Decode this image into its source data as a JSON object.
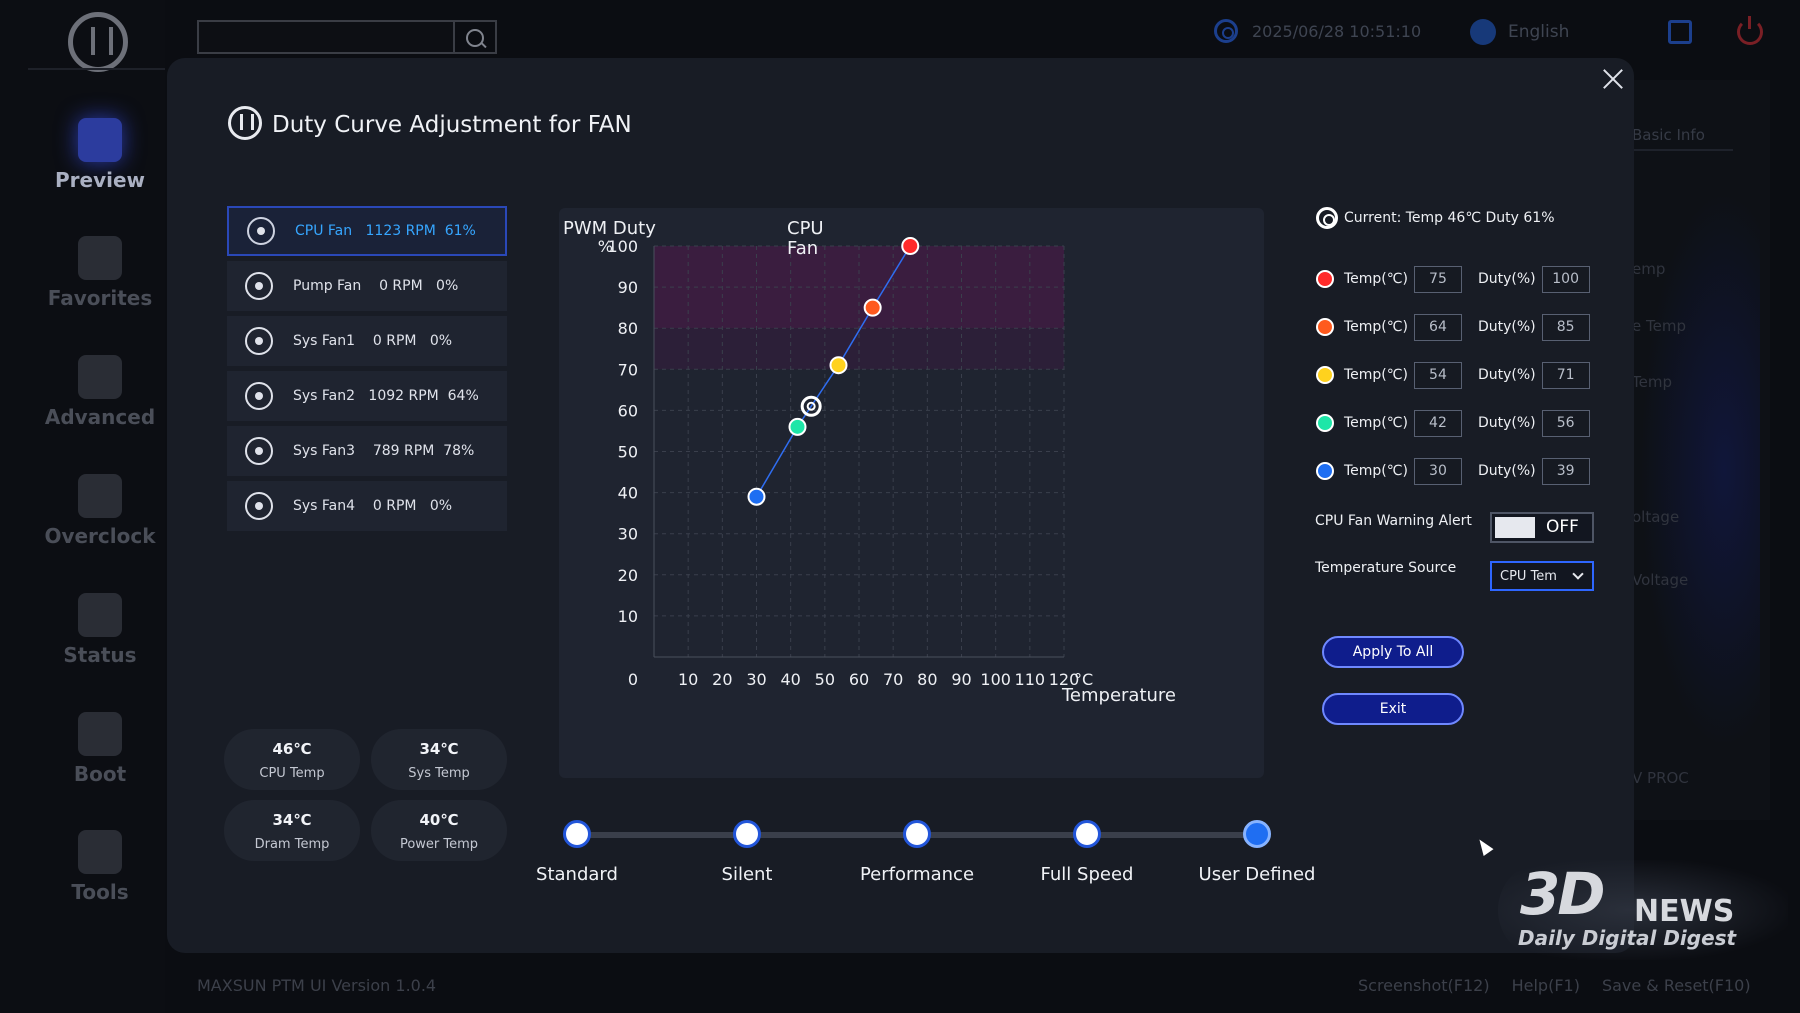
{
  "header": {
    "datetime": "2025/06/28 10:51:10",
    "language": "English"
  },
  "sidebar": {
    "items": [
      {
        "label": "Preview",
        "icon": "grid-icon",
        "active": true
      },
      {
        "label": "Favorites",
        "icon": "star-icon"
      },
      {
        "label": "Advanced",
        "icon": "wrench-icon"
      },
      {
        "label": "Overclock",
        "icon": "rocket-icon"
      },
      {
        "label": "Status",
        "icon": "eye-icon"
      },
      {
        "label": "Boot",
        "icon": "ssd-icon"
      },
      {
        "label": "Tools",
        "icon": "hammer-icon"
      }
    ]
  },
  "background_panel": {
    "tab": "Basic Info",
    "labels": [
      "emp",
      "e Temp",
      "Temp",
      "oltage",
      "Voltage",
      "V PROC"
    ]
  },
  "footer": {
    "version": "MAXSUN PTM UI Version 1.0.4",
    "screenshot": "Screenshot(F12)",
    "help": "Help(F1)",
    "save_reset": "Save & Reset(F10)"
  },
  "modal": {
    "title": "Duty Curve Adjustment for FAN",
    "fans": [
      {
        "name": "CPU Fan",
        "rpm": "1123 RPM",
        "duty": "61%",
        "active": true
      },
      {
        "name": "Pump Fan",
        "rpm": "0 RPM",
        "duty": "0%"
      },
      {
        "name": "Sys Fan1",
        "rpm": "0 RPM",
        "duty": "0%"
      },
      {
        "name": "Sys Fan2",
        "rpm": "1092 RPM",
        "duty": "64%"
      },
      {
        "name": "Sys Fan3",
        "rpm": "789 RPM",
        "duty": "78%"
      },
      {
        "name": "Sys Fan4",
        "rpm": "0 RPM",
        "duty": "0%"
      }
    ],
    "temps": [
      {
        "value": "46℃",
        "label": "CPU Temp"
      },
      {
        "value": "34℃",
        "label": "Sys Temp"
      },
      {
        "value": "34℃",
        "label": "Dram Temp"
      },
      {
        "value": "40℃",
        "label": "Power Temp"
      }
    ],
    "current": "Current: Temp 46℃  Duty 61%",
    "temp_label": "Temp(℃)",
    "duty_label": "Duty(%)",
    "points": [
      {
        "temp": "75",
        "duty": "100",
        "color": "#ff2a2a"
      },
      {
        "temp": "64",
        "duty": "85",
        "color": "#ff5a1e"
      },
      {
        "temp": "54",
        "duty": "71",
        "color": "#ffd21e"
      },
      {
        "temp": "42",
        "duty": "56",
        "color": "#1ee6a8"
      },
      {
        "temp": "30",
        "duty": "39",
        "color": "#1e6ef2"
      }
    ],
    "warning_label": "CPU Fan Warning Alert",
    "warning_state": "OFF",
    "source_label": "Temperature Source",
    "source_value": "CPU Tem",
    "apply_label": "Apply To All",
    "exit_label": "Exit",
    "presets": [
      {
        "label": "Standard"
      },
      {
        "label": "Silent"
      },
      {
        "label": "Performance"
      },
      {
        "label": "Full Speed"
      },
      {
        "label": "User Defined",
        "active": true
      }
    ]
  },
  "watermark": {
    "brand": "3D",
    "news": "NEWS",
    "sub": "Daily Digital Digest"
  },
  "chart_data": {
    "type": "line",
    "title": "CPU Fan",
    "ylabel": "PWM Duty",
    "ylabel_unit": "%",
    "xlabel": "Temperature",
    "xlabel_unit": "°C",
    "xlim": [
      0,
      120
    ],
    "ylim": [
      0,
      100
    ],
    "x_ticks": [
      10,
      20,
      30,
      40,
      50,
      60,
      70,
      80,
      90,
      100,
      110,
      120
    ],
    "y_ticks": [
      0,
      10,
      20,
      30,
      40,
      50,
      60,
      70,
      80,
      90,
      100
    ],
    "grid": true,
    "danger_band": [
      80,
      100
    ],
    "warn_band": [
      70,
      80
    ],
    "series": [
      {
        "x": [
          30,
          42,
          54,
          64,
          75
        ],
        "y": [
          39,
          56,
          71,
          85,
          100
        ]
      }
    ],
    "current_point": {
      "x": 46,
      "y": 61
    }
  }
}
